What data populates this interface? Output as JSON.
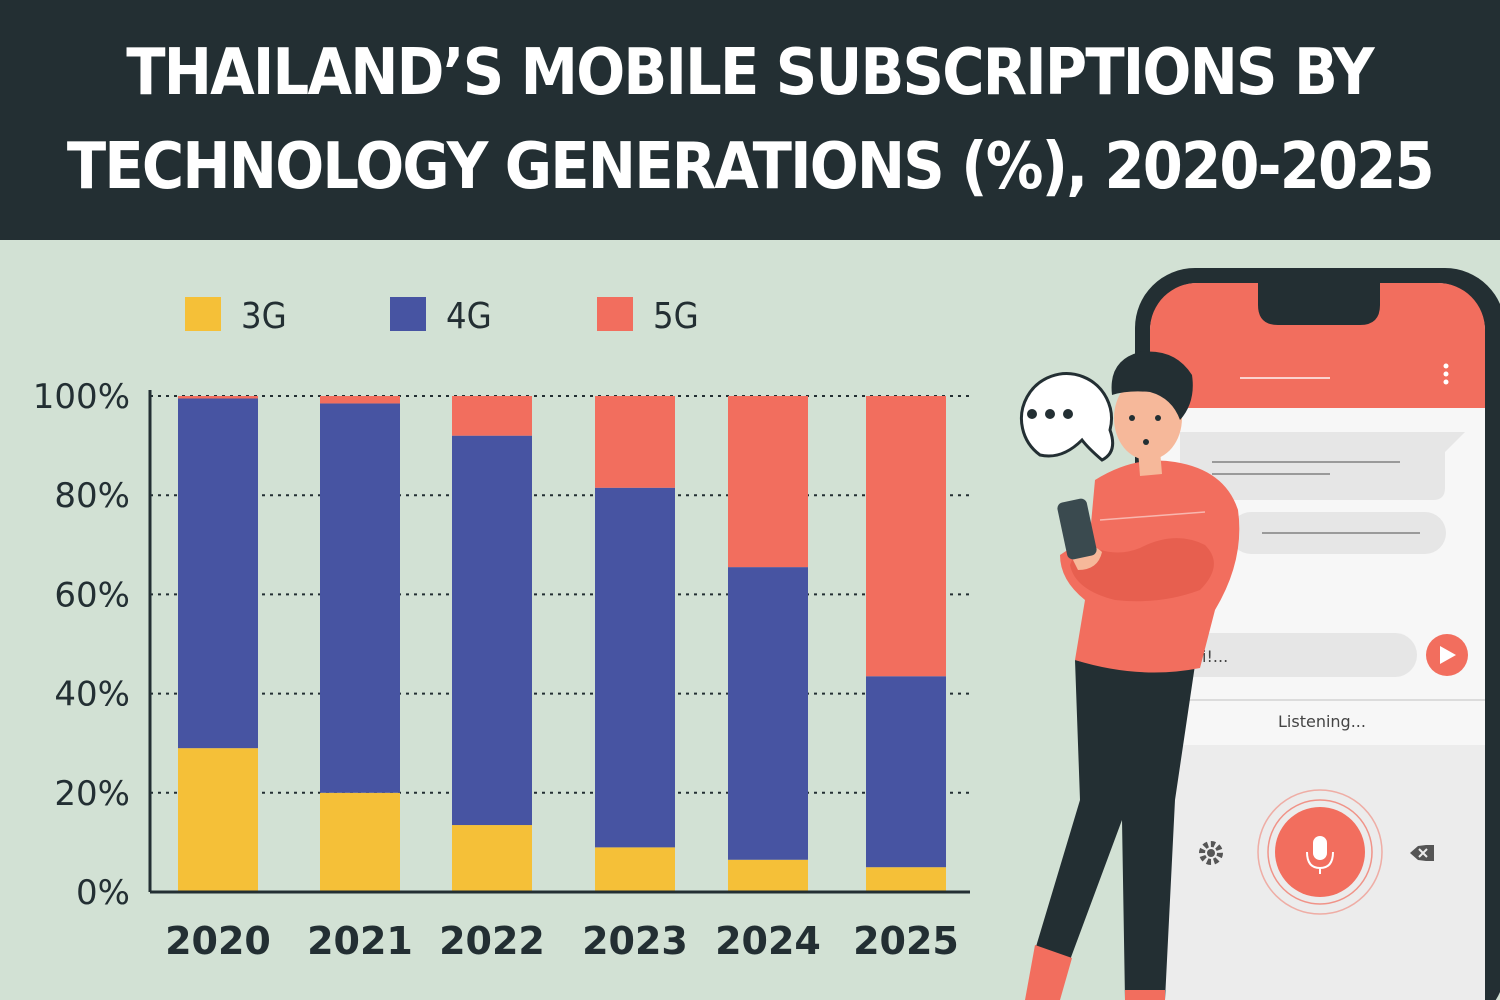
{
  "header": {
    "title_line1": "THAILAND’S MOBILE SUBSCRIPTIONS BY",
    "title_line2": "TECHNOLOGY GENERATIONS (%), 2020-2025"
  },
  "colors": {
    "3G": "#f5c038",
    "4G": "#4754a2",
    "5G": "#f26e5e",
    "dark": "#232f33",
    "background": "#d2e1d4"
  },
  "chart_data": {
    "type": "bar",
    "stacked": true,
    "title": "THAILAND’S MOBILE SUBSCRIPTIONS BY TECHNOLOGY GENERATIONS (%), 2020-2025",
    "xlabel": "",
    "ylabel": "",
    "ylim": [
      0,
      100
    ],
    "yticks": [
      0,
      20,
      40,
      60,
      80,
      100
    ],
    "ytick_labels": [
      "0%",
      "20%",
      "40%",
      "60%",
      "80%",
      "100%"
    ],
    "grid": true,
    "legend_position": "top-left",
    "categories": [
      "2020",
      "2021",
      "2022",
      "2023",
      "2024",
      "2025"
    ],
    "series": [
      {
        "name": "3G",
        "values": [
          29,
          20,
          13.5,
          9,
          6.5,
          5
        ]
      },
      {
        "name": "4G",
        "values": [
          70.5,
          78.5,
          78.5,
          72.5,
          59,
          38.5
        ]
      },
      {
        "name": "5G",
        "values": [
          0.5,
          1.5,
          8,
          18.5,
          34.5,
          56.5
        ]
      }
    ]
  },
  "illustration": {
    "speech_bubble": "•••",
    "input_text": "Hi!...",
    "status_text": "Listening..."
  }
}
